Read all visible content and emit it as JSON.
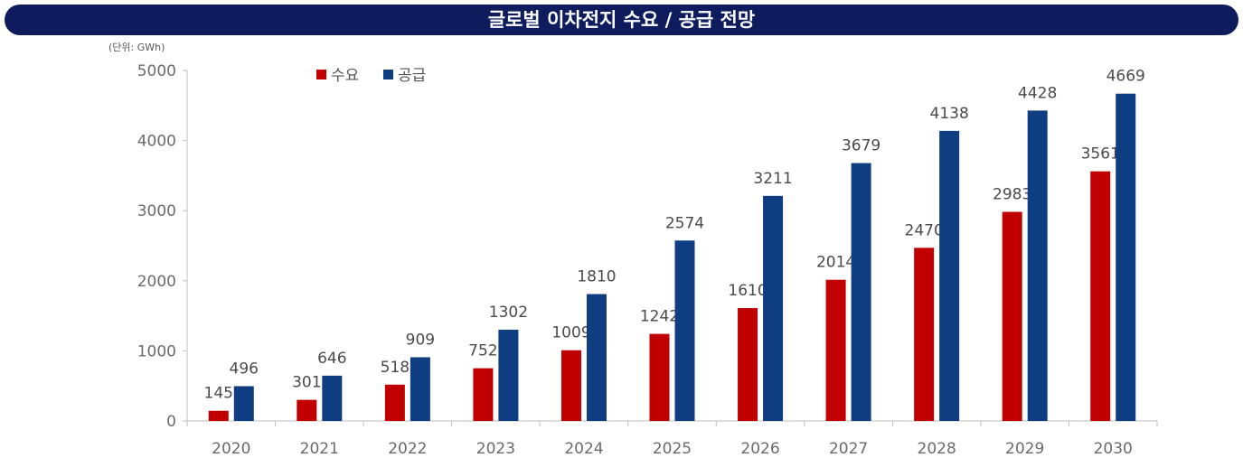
{
  "chart_data": {
    "type": "bar",
    "title": "글로벌 이차전지 수요 / 공급 전망",
    "unit": "(단위: GWh)",
    "xlabel": "",
    "ylabel": "",
    "ylim": [
      0,
      5000
    ],
    "yticks": [
      "0",
      "1000",
      "2000",
      "3000",
      "4000",
      "5000"
    ],
    "categories": [
      "2020",
      "2021",
      "2022",
      "2023",
      "2024",
      "2025",
      "2026",
      "2027",
      "2028",
      "2029",
      "2030"
    ],
    "legend_position": "top-left",
    "series": [
      {
        "name": "수요",
        "color": "#c00000",
        "values": [
          145,
          301,
          518,
          752,
          1009,
          1242,
          1610,
          2014,
          2470,
          2983,
          3561
        ]
      },
      {
        "name": "공급",
        "color": "#0f3d82",
        "values": [
          496,
          646,
          909,
          1302,
          1810,
          2574,
          3211,
          3679,
          4138,
          4428,
          4669
        ]
      }
    ]
  }
}
